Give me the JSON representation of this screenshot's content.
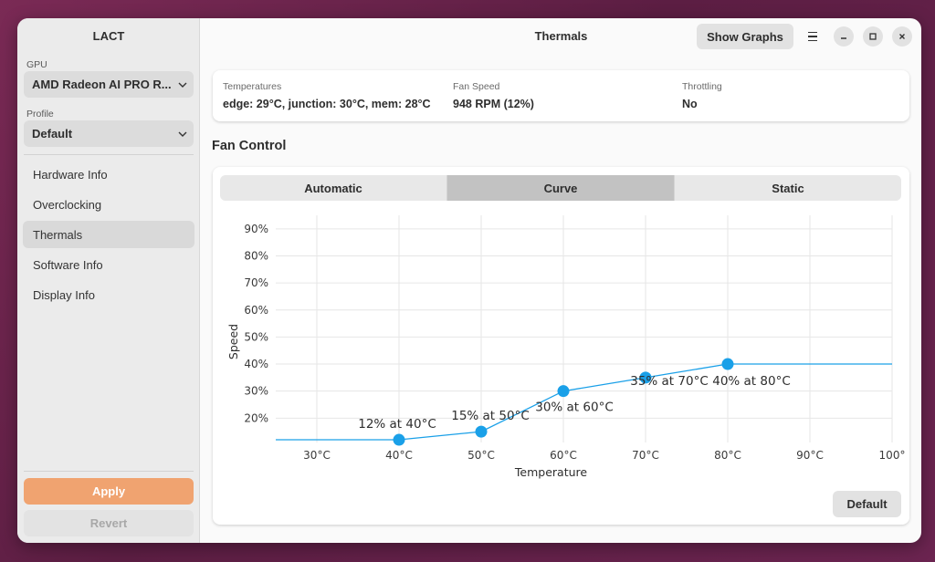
{
  "sidebar": {
    "title": "LACT",
    "gpu_label": "GPU",
    "gpu_value": "AMD Radeon AI PRO R...",
    "profile_label": "Profile",
    "profile_value": "Default",
    "items": [
      {
        "label": "Hardware Info",
        "active": false
      },
      {
        "label": "Overclocking",
        "active": false
      },
      {
        "label": "Thermals",
        "active": true
      },
      {
        "label": "Software Info",
        "active": false
      },
      {
        "label": "Display Info",
        "active": false
      }
    ],
    "apply_label": "Apply",
    "revert_label": "Revert"
  },
  "header": {
    "title": "Thermals",
    "show_graphs_label": "Show Graphs",
    "icons": [
      "menu-icon",
      "minimize-icon",
      "maximize-icon",
      "close-icon"
    ]
  },
  "status": {
    "temperatures_label": "Temperatures",
    "temperatures_value": "edge: 29°C, junction: 30°C, mem: 28°C",
    "fan_speed_label": "Fan Speed",
    "fan_speed_value": "948 RPM (12%)",
    "throttling_label": "Throttling",
    "throttling_value": "No"
  },
  "fan_control": {
    "title": "Fan Control",
    "tabs": [
      {
        "label": "Automatic",
        "active": false
      },
      {
        "label": "Curve",
        "active": true
      },
      {
        "label": "Static",
        "active": false
      }
    ],
    "default_label": "Default"
  },
  "colors": {
    "accent": "#f0a370",
    "curve": "#1aa0e8",
    "active_tab": "#c2c2c2"
  },
  "chart_data": {
    "type": "line",
    "xlabel": "Temperature",
    "ylabel": "Speed",
    "xlim": [
      25,
      100
    ],
    "ylim": [
      11,
      95
    ],
    "x_ticks": [
      30,
      40,
      50,
      60,
      70,
      80,
      90,
      100
    ],
    "x_tick_labels": [
      "30°C",
      "40°C",
      "50°C",
      "60°C",
      "70°C",
      "80°C",
      "90°C",
      "100°"
    ],
    "y_ticks": [
      20,
      30,
      40,
      50,
      60,
      70,
      80,
      90
    ],
    "y_tick_labels": [
      "20%",
      "30%",
      "40%",
      "50%",
      "60%",
      "70%",
      "80%",
      "90%"
    ],
    "grid": true,
    "points": [
      {
        "x": 40,
        "y": 12,
        "label": "12% at 40°C"
      },
      {
        "x": 50,
        "y": 15,
        "label": "15% at 50°C"
      },
      {
        "x": 60,
        "y": 30,
        "label": "30% at 60°C"
      },
      {
        "x": 70,
        "y": 35,
        "label": "35% at 70°C"
      },
      {
        "x": 80,
        "y": 40,
        "label": "40% at 80°C"
      }
    ],
    "extend_left_to": 25,
    "extend_right_to": 100
  }
}
